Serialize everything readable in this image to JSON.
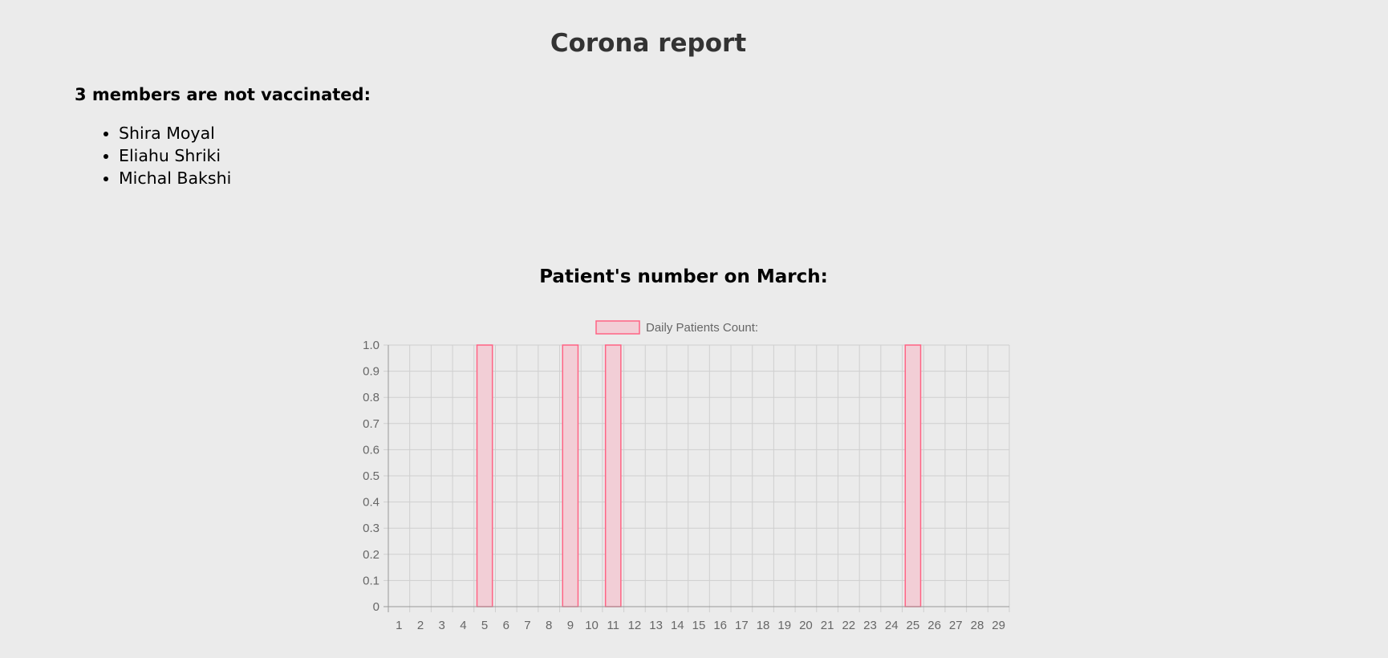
{
  "header": {
    "title": "Corona report"
  },
  "unvaccinated": {
    "heading": "3 members are not vaccinated:",
    "members": [
      "Shira Moyal",
      "Eliahu Shriki",
      "Michal Bakshi"
    ]
  },
  "chart_section": {
    "title": "Patient's number on March:"
  },
  "chart_data": {
    "type": "bar",
    "title": "Patient's number on March:",
    "xlabel": "",
    "ylabel": "",
    "categories": [
      "1",
      "2",
      "3",
      "4",
      "5",
      "6",
      "7",
      "8",
      "9",
      "10",
      "11",
      "12",
      "13",
      "14",
      "15",
      "16",
      "17",
      "18",
      "19",
      "20",
      "21",
      "22",
      "23",
      "24",
      "25",
      "26",
      "27",
      "28",
      "29"
    ],
    "series": [
      {
        "name": "Daily Patients Count:",
        "values": [
          0,
          0,
          0,
          0,
          1,
          0,
          0,
          0,
          1,
          0,
          1,
          0,
          0,
          0,
          0,
          0,
          0,
          0,
          0,
          0,
          0,
          0,
          0,
          0,
          1,
          0,
          0,
          0,
          0
        ],
        "fill": "#f2ced6",
        "stroke": "#ff6384"
      }
    ],
    "ylim": [
      0,
      1
    ],
    "yticks": [
      "0",
      "0.1",
      "0.2",
      "0.3",
      "0.4",
      "0.5",
      "0.6",
      "0.7",
      "0.8",
      "0.9",
      "1.0"
    ],
    "grid": true,
    "legend": "top-center"
  }
}
